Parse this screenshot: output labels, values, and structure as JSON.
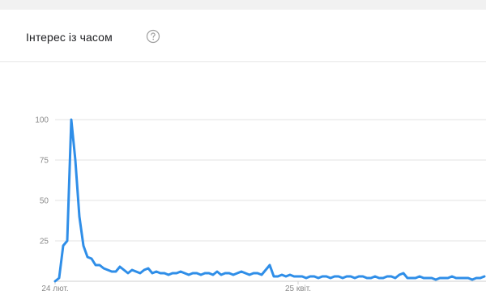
{
  "card": {
    "title": "Інтерес із часом",
    "help_icon": "help-circle-icon"
  },
  "colors": {
    "line": "#2f8ee8",
    "grid": "#e3e3e3",
    "tick": "#8a8a8a"
  },
  "chart_data": {
    "type": "line",
    "title": "Інтерес із часом",
    "xlabel": "",
    "ylabel": "",
    "ylim": [
      0,
      100
    ],
    "yticks": [
      25,
      50,
      75,
      100
    ],
    "xtick_labels": [
      "24 лют.",
      "25 квіт."
    ],
    "xtick_index": [
      0,
      60
    ],
    "grid": true,
    "series": [
      {
        "values": [
          0,
          2,
          22,
          25,
          100,
          75,
          40,
          22,
          15,
          14,
          10,
          10,
          8,
          7,
          6,
          6,
          9,
          7,
          5,
          7,
          6,
          5,
          7,
          8,
          5,
          6,
          5,
          5,
          4,
          5,
          5,
          6,
          5,
          4,
          5,
          5,
          4,
          5,
          5,
          4,
          6,
          4,
          5,
          5,
          4,
          5,
          6,
          5,
          4,
          5,
          5,
          4,
          7,
          10,
          3,
          3,
          4,
          3,
          4,
          3,
          3,
          3,
          2,
          3,
          3,
          2,
          3,
          3,
          2,
          3,
          3,
          2,
          3,
          3,
          2,
          3,
          3,
          2,
          2,
          3,
          2,
          2,
          3,
          3,
          2,
          4,
          5,
          2,
          2,
          2,
          3,
          2,
          2,
          2,
          1,
          2,
          2,
          2,
          3,
          2,
          2,
          2,
          2,
          1,
          2,
          2,
          3,
          2,
          2,
          2,
          2,
          2,
          1,
          2,
          2,
          2,
          1,
          2,
          2,
          3,
          2,
          2,
          1,
          2,
          2,
          2,
          1,
          2,
          2,
          2,
          3,
          2,
          2,
          2,
          1,
          2,
          2,
          2,
          1,
          2,
          2,
          1,
          2,
          2,
          1,
          2,
          2,
          1,
          2,
          2,
          2
        ]
      }
    ]
  }
}
